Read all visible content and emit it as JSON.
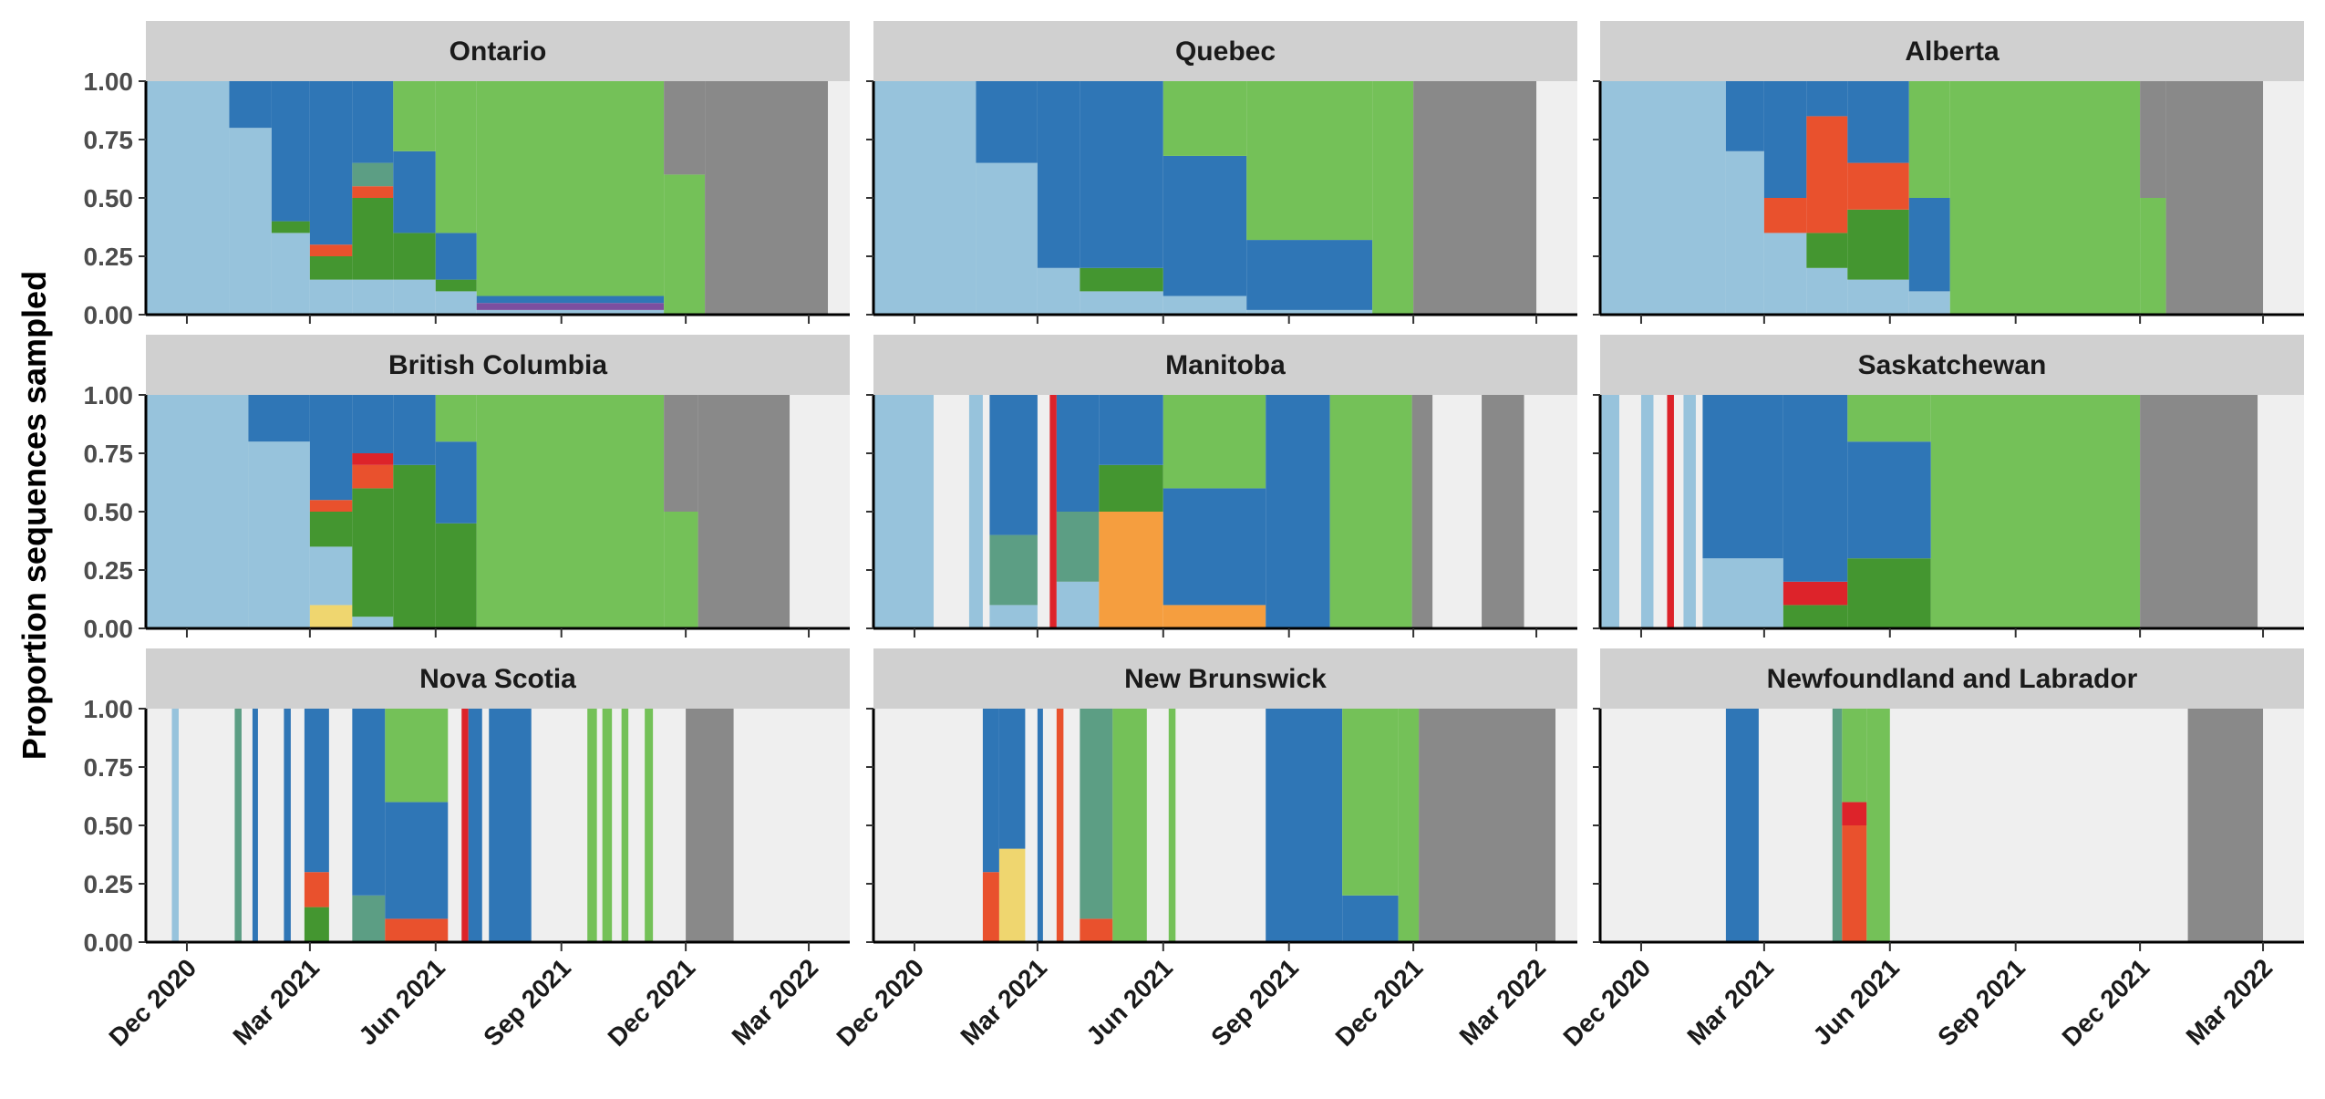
{
  "chart_data": {
    "type": "area",
    "layout": "facet-grid-3x3",
    "title": "",
    "xlabel": "",
    "ylabel": "Proportion sequences sampled",
    "ylim": [
      0,
      1
    ],
    "y_ticks": [
      "0.00",
      "0.25",
      "0.50",
      "0.75",
      "1.00"
    ],
    "y_tick_values": [
      0,
      0.25,
      0.5,
      0.75,
      1.0
    ],
    "x_range": [
      "2020-11-01",
      "2022-03-31"
    ],
    "x_ticks": [
      "Dec 2020",
      "Mar 2021",
      "Jun 2021",
      "Sep 2021",
      "Dec 2021",
      "Mar 2022"
    ],
    "x_tick_dates": [
      "2020-12-01",
      "2021-03-01",
      "2021-06-01",
      "2021-09-01",
      "2021-12-01",
      "2022-03-01"
    ],
    "grid": false,
    "legend": "none",
    "colors": {
      "panel_background": "#efefef",
      "strip_background": "#d0d0d0",
      "lineage_other": "#97c3dc",
      "lineage_alpha": "#2f76b6",
      "lineage_delta": "#74c158",
      "lineage_omicron": "#898989",
      "lineage_gamma": "#449630",
      "lineage_beta": "#e9512d",
      "lineage_eta": "#5c9e84",
      "lineage_orange": "#f59e3f",
      "lineage_red": "#dd232a",
      "lineage_yellow": "#efd66f",
      "lineage_purple": "#7b4fa0"
    },
    "panels": [
      {
        "name": "Ontario",
        "periods": [
          {
            "start": "2020-11-01",
            "end": "2021-01-01",
            "other": 1.0
          },
          {
            "start": "2021-01-01",
            "end": "2021-02-01",
            "other": 0.8,
            "alpha": 0.2
          },
          {
            "start": "2021-02-01",
            "end": "2021-03-01",
            "other": 0.35,
            "alpha": 0.6,
            "gamma": 0.05
          },
          {
            "start": "2021-03-01",
            "end": "2021-04-01",
            "other": 0.15,
            "alpha": 0.7,
            "gamma": 0.1,
            "beta": 0.05
          },
          {
            "start": "2021-04-01",
            "end": "2021-05-01",
            "other": 0.15,
            "alpha": 0.35,
            "gamma": 0.35,
            "beta": 0.05,
            "eta": 0.1
          },
          {
            "start": "2021-05-01",
            "end": "2021-06-01",
            "other": 0.15,
            "alpha": 0.35,
            "gamma": 0.2,
            "delta": 0.3
          },
          {
            "start": "2021-06-01",
            "end": "2021-07-01",
            "other": 0.1,
            "alpha": 0.2,
            "gamma": 0.05,
            "delta": 0.65
          },
          {
            "start": "2021-07-01",
            "end": "2021-11-15",
            "other": 0.02,
            "alpha": 0.03,
            "purple": 0.03,
            "delta": 0.92
          },
          {
            "start": "2021-11-15",
            "end": "2021-12-15",
            "delta": 0.6,
            "omicron": 0.4
          },
          {
            "start": "2021-12-15",
            "end": "2022-03-15",
            "omicron": 1.0
          }
        ]
      },
      {
        "name": "Quebec",
        "periods": [
          {
            "start": "2020-11-01",
            "end": "2021-01-15",
            "other": 1.0
          },
          {
            "start": "2021-01-15",
            "end": "2021-03-01",
            "other": 0.65,
            "alpha": 0.35
          },
          {
            "start": "2021-03-01",
            "end": "2021-04-01",
            "other": 0.2,
            "alpha": 0.8
          },
          {
            "start": "2021-04-01",
            "end": "2021-06-01",
            "other": 0.1,
            "alpha": 0.8,
            "gamma": 0.1
          },
          {
            "start": "2021-06-01",
            "end": "2021-08-01",
            "other": 0.08,
            "alpha": 0.6,
            "delta": 0.32
          },
          {
            "start": "2021-08-01",
            "end": "2021-11-01",
            "other": 0.02,
            "alpha": 0.3,
            "delta": 0.68
          },
          {
            "start": "2021-11-01",
            "end": "2021-12-01",
            "delta": 1.0
          },
          {
            "start": "2021-12-01",
            "end": "2022-03-01",
            "omicron": 1.0
          }
        ]
      },
      {
        "name": "Alberta",
        "periods": [
          {
            "start": "2020-11-01",
            "end": "2021-02-01",
            "other": 1.0
          },
          {
            "start": "2021-02-01",
            "end": "2021-03-01",
            "other": 0.7,
            "alpha": 0.3
          },
          {
            "start": "2021-03-01",
            "end": "2021-04-01",
            "other": 0.35,
            "alpha": 0.5,
            "beta": 0.15
          },
          {
            "start": "2021-04-01",
            "end": "2021-05-01",
            "other": 0.2,
            "alpha": 0.15,
            "beta": 0.5,
            "gamma": 0.15
          },
          {
            "start": "2021-05-01",
            "end": "2021-06-15",
            "other": 0.15,
            "alpha": 0.35,
            "beta": 0.2,
            "gamma": 0.3
          },
          {
            "start": "2021-06-15",
            "end": "2021-07-15",
            "other": 0.1,
            "alpha": 0.4,
            "delta": 0.5
          },
          {
            "start": "2021-07-15",
            "end": "2021-12-01",
            "delta": 1.0
          },
          {
            "start": "2021-12-01",
            "end": "2021-12-20",
            "delta": 0.5,
            "omicron": 0.5
          },
          {
            "start": "2021-12-20",
            "end": "2022-03-01",
            "omicron": 1.0
          }
        ]
      },
      {
        "name": "British Columbia",
        "periods": [
          {
            "start": "2020-11-01",
            "end": "2021-01-15",
            "other": 1.0
          },
          {
            "start": "2021-01-15",
            "end": "2021-03-01",
            "other": 0.8,
            "alpha": 0.2
          },
          {
            "start": "2021-03-01",
            "end": "2021-04-01",
            "yellow": 0.1,
            "other": 0.25,
            "alpha": 0.45,
            "beta": 0.05,
            "gamma": 0.15
          },
          {
            "start": "2021-04-01",
            "end": "2021-05-01",
            "other": 0.05,
            "beta": 0.1,
            "gamma": 0.55,
            "red": 0.05,
            "alpha": 0.25
          },
          {
            "start": "2021-05-01",
            "end": "2021-06-01",
            "gamma": 0.7,
            "alpha": 0.3
          },
          {
            "start": "2021-06-01",
            "end": "2021-07-01",
            "gamma": 0.45,
            "delta": 0.2,
            "alpha": 0.35
          },
          {
            "start": "2021-07-01",
            "end": "2021-11-15",
            "delta": 1.0
          },
          {
            "start": "2021-11-15",
            "end": "2021-12-10",
            "delta": 0.5,
            "omicron": 0.5
          },
          {
            "start": "2021-12-10",
            "end": "2022-02-15",
            "omicron": 1.0
          }
        ]
      },
      {
        "name": "Manitoba",
        "periods": [
          {
            "start": "2020-11-01",
            "end": "2020-12-15",
            "other": 1.0
          },
          {
            "start": "2021-01-10",
            "end": "2021-01-20",
            "other": 1.0
          },
          {
            "start": "2021-01-25",
            "end": "2021-03-01",
            "alpha": 0.6,
            "eta": 0.3,
            "other": 0.1
          },
          {
            "start": "2021-03-10",
            "end": "2021-03-15",
            "red": 1.0
          },
          {
            "start": "2021-03-15",
            "end": "2021-04-15",
            "other": 0.2,
            "alpha": 0.5,
            "eta": 0.3
          },
          {
            "start": "2021-04-15",
            "end": "2021-06-01",
            "orange": 0.5,
            "gamma": 0.2,
            "alpha": 0.3
          },
          {
            "start": "2021-06-01",
            "end": "2021-08-15",
            "orange": 0.1,
            "delta": 0.4,
            "alpha": 0.5
          },
          {
            "start": "2021-08-15",
            "end": "2021-10-01",
            "alpha": 1.0
          },
          {
            "start": "2021-10-01",
            "end": "2021-11-30",
            "delta": 1.0
          },
          {
            "start": "2021-11-30",
            "end": "2021-12-15",
            "omicron": 1.0
          },
          {
            "start": "2022-01-20",
            "end": "2022-02-20",
            "omicron": 1.0
          }
        ]
      },
      {
        "name": "Saskatchewan",
        "periods": [
          {
            "start": "2020-11-01",
            "end": "2020-11-15",
            "other": 1.0
          },
          {
            "start": "2020-12-01",
            "end": "2020-12-10",
            "other": 1.0
          },
          {
            "start": "2020-12-20",
            "end": "2020-12-25",
            "red": 1.0
          },
          {
            "start": "2021-01-01",
            "end": "2021-01-10",
            "other": 1.0
          },
          {
            "start": "2021-01-15",
            "end": "2021-03-15",
            "other": 0.3,
            "alpha": 0.7
          },
          {
            "start": "2021-03-15",
            "end": "2021-05-01",
            "alpha": 0.8,
            "red": 0.1,
            "gamma": 0.1
          },
          {
            "start": "2021-05-01",
            "end": "2021-07-01",
            "gamma": 0.3,
            "alpha": 0.5,
            "delta": 0.2
          },
          {
            "start": "2021-07-01",
            "end": "2021-12-01",
            "delta": 1.0
          },
          {
            "start": "2021-12-01",
            "end": "2022-02-25",
            "omicron": 1.0
          }
        ]
      },
      {
        "name": "Nova Scotia",
        "periods": [
          {
            "start": "2020-11-20",
            "end": "2020-11-25",
            "other": 1.0
          },
          {
            "start": "2021-01-05",
            "end": "2021-01-10",
            "eta": 1.0
          },
          {
            "start": "2021-01-18",
            "end": "2021-01-22",
            "alpha": 1.0
          },
          {
            "start": "2021-02-10",
            "end": "2021-02-15",
            "alpha": 1.0
          },
          {
            "start": "2021-02-25",
            "end": "2021-03-15",
            "alpha": 0.7,
            "beta": 0.15,
            "gamma": 0.15
          },
          {
            "start": "2021-04-01",
            "end": "2021-04-25",
            "alpha": 0.8,
            "eta": 0.2
          },
          {
            "start": "2021-04-25",
            "end": "2021-06-10",
            "alpha": 0.5,
            "delta": 0.4,
            "beta": 0.1
          },
          {
            "start": "2021-06-20",
            "end": "2021-06-25",
            "red": 1.0
          },
          {
            "start": "2021-06-25",
            "end": "2021-07-05",
            "alpha": 1.0
          },
          {
            "start": "2021-07-10",
            "end": "2021-08-10",
            "alpha": 1.0
          },
          {
            "start": "2021-09-20",
            "end": "2021-09-27",
            "delta": 1.0
          },
          {
            "start": "2021-10-01",
            "end": "2021-10-08",
            "delta": 1.0
          },
          {
            "start": "2021-10-15",
            "end": "2021-10-20",
            "delta": 1.0
          },
          {
            "start": "2021-11-01",
            "end": "2021-11-07",
            "delta": 1.0
          },
          {
            "start": "2021-12-01",
            "end": "2022-01-05",
            "omicron": 1.0
          }
        ]
      },
      {
        "name": "New Brunswick",
        "periods": [
          {
            "start": "2021-01-20",
            "end": "2021-02-01",
            "alpha": 0.7,
            "beta": 0.3
          },
          {
            "start": "2021-02-01",
            "end": "2021-02-20",
            "alpha": 0.6,
            "yellow": 0.4
          },
          {
            "start": "2021-03-01",
            "end": "2021-03-05",
            "alpha": 1.0
          },
          {
            "start": "2021-03-15",
            "end": "2021-03-20",
            "beta": 1.0
          },
          {
            "start": "2021-04-01",
            "end": "2021-04-25",
            "eta": 0.9,
            "beta": 0.1
          },
          {
            "start": "2021-04-25",
            "end": "2021-05-20",
            "delta": 1.0
          },
          {
            "start": "2021-06-05",
            "end": "2021-06-10",
            "delta": 1.0
          },
          {
            "start": "2021-08-15",
            "end": "2021-10-10",
            "alpha": 1.0
          },
          {
            "start": "2021-10-10",
            "end": "2021-11-20",
            "delta": 0.8,
            "alpha": 0.2
          },
          {
            "start": "2021-11-20",
            "end": "2021-12-05",
            "delta": 1.0
          },
          {
            "start": "2021-12-05",
            "end": "2022-03-15",
            "omicron": 1.0
          }
        ]
      },
      {
        "name": "Newfoundland and Labrador",
        "periods": [
          {
            "start": "2021-02-01",
            "end": "2021-02-25",
            "alpha": 1.0
          },
          {
            "start": "2021-04-20",
            "end": "2021-04-27",
            "eta": 1.0
          },
          {
            "start": "2021-04-27",
            "end": "2021-05-15",
            "beta": 0.5,
            "red": 0.1,
            "delta": 0.4
          },
          {
            "start": "2021-05-15",
            "end": "2021-06-01",
            "delta": 1.0
          },
          {
            "start": "2022-01-05",
            "end": "2022-03-01",
            "omicron": 1.0
          }
        ]
      }
    ]
  }
}
